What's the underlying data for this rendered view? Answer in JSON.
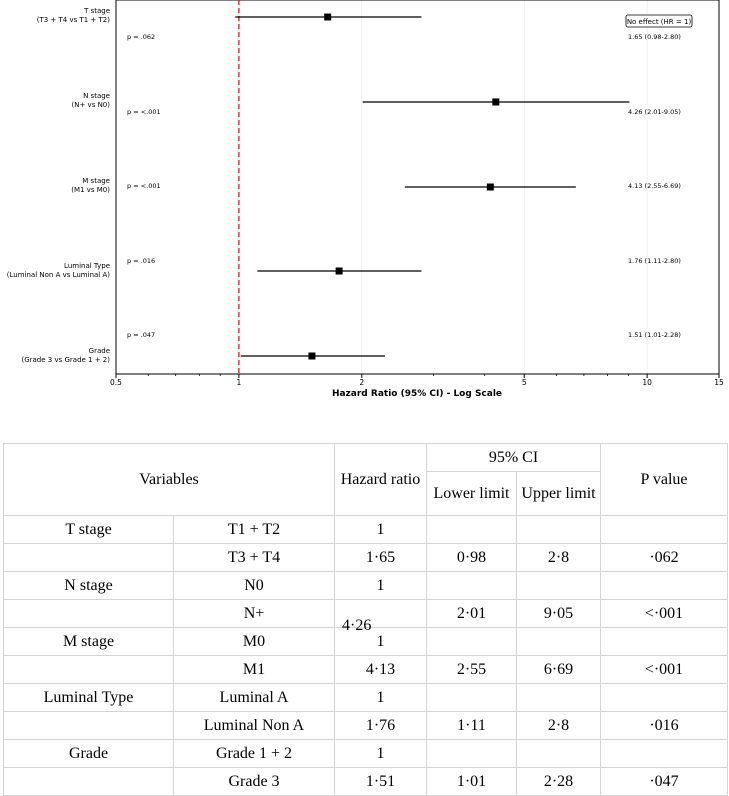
{
  "chart_data": {
    "type": "forest",
    "xlabel": "Hazard Ratio (95% CI) - Log Scale",
    "xscale": "log",
    "xlim": [
      0.5,
      15
    ],
    "xticks": [
      0.5,
      1,
      2,
      5,
      10,
      15
    ],
    "reference_line": {
      "value": 1,
      "style": "dashed",
      "color": "#d62728"
    },
    "legend": {
      "label": "No effect (HR = 1)",
      "placement": "top-right"
    },
    "rows": [
      {
        "label_line1": "T stage",
        "label_line2": "(T3 + T4 vs T1 + T2)",
        "hr": 1.65,
        "lower": 0.98,
        "upper": 2.8,
        "p_text": "p = .062",
        "ci_text": "1.65 (0.98-2.80)"
      },
      {
        "label_line1": "N stage",
        "label_line2": "(N+ vs N0)",
        "hr": 4.26,
        "lower": 2.01,
        "upper": 9.05,
        "p_text": "p = <.001",
        "ci_text": "4.26 (2.01-9.05)"
      },
      {
        "label_line1": "M stage",
        "label_line2": "(M1 vs M0)",
        "hr": 4.13,
        "lower": 2.55,
        "upper": 6.69,
        "p_text": "p = <.001",
        "ci_text": "4.13 (2.55-6.69)"
      },
      {
        "label_line1": "Luminal Type",
        "label_line2": "(Luminal Non A vs Luminal A)",
        "hr": 1.76,
        "lower": 1.11,
        "upper": 2.8,
        "p_text": "p = .016",
        "ci_text": "1.76 (1.11-2.80)"
      },
      {
        "label_line1": "Grade",
        "label_line2": "(Grade 3 vs Grade 1 + 2)",
        "hr": 1.51,
        "lower": 1.01,
        "upper": 2.28,
        "p_text": "p = .047",
        "ci_text": "1.51 (1.01-2.28)"
      }
    ]
  },
  "table": {
    "headers": {
      "variables": "Variables",
      "hazard_ratio": "Hazard ratio",
      "ci": "95% CI",
      "lower": "Lower limit",
      "upper": "Upper limit",
      "p_value": "P value"
    },
    "rows": [
      {
        "variable": "T stage",
        "level": "T1 + T2",
        "hr": "1",
        "lower": "",
        "upper": "",
        "p": ""
      },
      {
        "variable": "",
        "level": "T3 + T4",
        "hr": "1·65",
        "lower": "0·98",
        "upper": "2·8",
        "p": "·062"
      },
      {
        "variable": "N stage",
        "level": "N0",
        "hr": "1",
        "lower": "",
        "upper": "",
        "p": ""
      },
      {
        "variable": "",
        "level": "N+",
        "hr": "",
        "lower": "2·01",
        "upper": "9·05",
        "p": "<·001"
      },
      {
        "variable": "M stage",
        "level": "M0",
        "hr": "1",
        "lower": "",
        "upper": "",
        "p": ""
      },
      {
        "variable": "",
        "level": "M1",
        "hr": "4·13",
        "lower": "2·55",
        "upper": "6·69",
        "p": "<·001"
      },
      {
        "variable": "Luminal Type",
        "level": "Luminal A",
        "hr": "1",
        "lower": "",
        "upper": "",
        "p": ""
      },
      {
        "variable": "",
        "level": "Luminal Non A",
        "hr": "1·76",
        "lower": "1·11",
        "upper": "2·8",
        "p": "·016"
      },
      {
        "variable": "Grade",
        "level": "Grade 1 + 2",
        "hr": "1",
        "lower": "",
        "upper": "",
        "p": ""
      },
      {
        "variable": "",
        "level": "Grade 3",
        "hr": "1·51",
        "lower": "1·01",
        "upper": "2·28",
        "p": "·047"
      }
    ],
    "floating_value": "4·26"
  }
}
